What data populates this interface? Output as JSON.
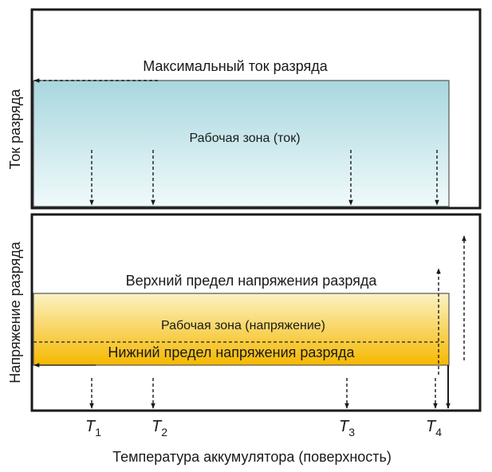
{
  "colors": {
    "current_zone_top": "#a8d7de",
    "current_zone_bottom": "#f0fafb",
    "voltage_zone_top": "#fbf2c4",
    "voltage_zone_bottom": "#f6b800",
    "frame": "#1a1a1a"
  },
  "top_panel": {
    "y_axis_label": "Ток разряда",
    "max_current_label": "Максимальный ток разряда",
    "zone_label": "Рабочая зона (ток)"
  },
  "bottom_panel": {
    "y_axis_label": "Напряжение разряда",
    "upper_limit_label": "Верхний предел напряжения разряда",
    "zone_label": "Рабочая зона (напряжение)",
    "lower_limit_label": "Нижний предел напряжения разряда"
  },
  "temperatures": [
    {
      "letter": "T",
      "index": "1"
    },
    {
      "letter": "T",
      "index": "2"
    },
    {
      "letter": "T",
      "index": "3"
    },
    {
      "letter": "T",
      "index": "4"
    }
  ],
  "x_axis_label": "Температура аккумулятора (поверхность)"
}
